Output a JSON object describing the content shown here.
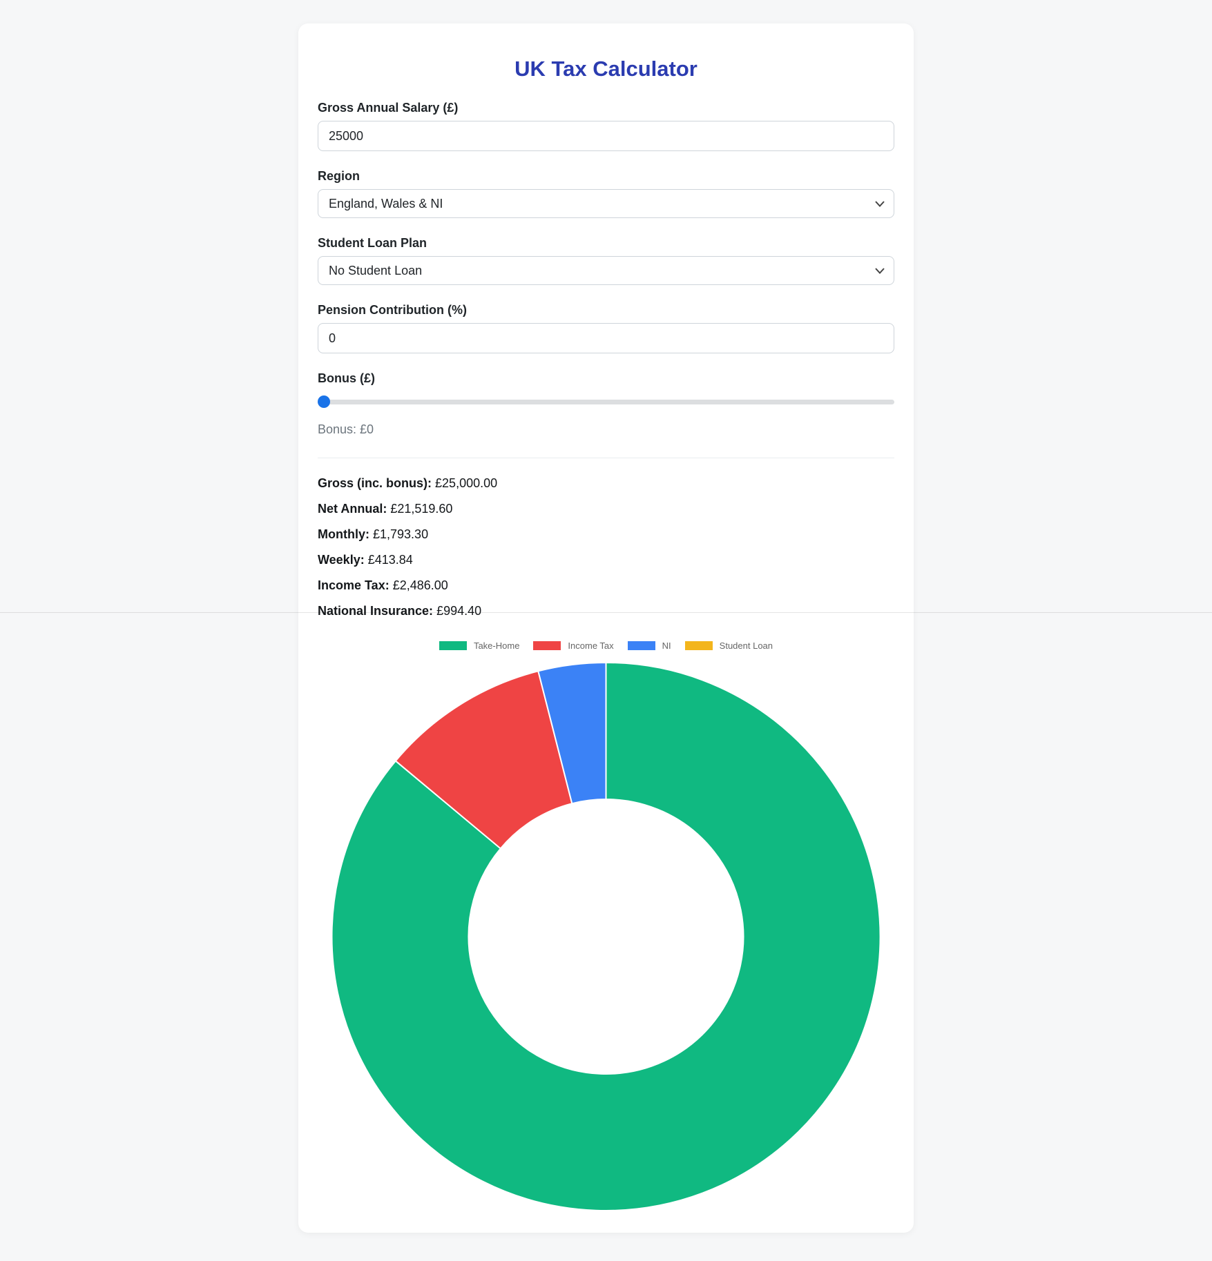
{
  "app": {
    "title": "UK Tax Calculator"
  },
  "theme": {
    "title_color": "#2b3cb0",
    "slider_thumb_color": "#1a73e8",
    "page_background": "#f6f7f8"
  },
  "form": {
    "salary": {
      "label": "Gross Annual Salary (£)",
      "value": "25000"
    },
    "region": {
      "label": "Region",
      "selected": "England, Wales & NI"
    },
    "student_loan": {
      "label": "Student Loan Plan",
      "selected": "No Student Loan"
    },
    "pension": {
      "label": "Pension Contribution (%)",
      "value": "0"
    },
    "bonus": {
      "label": "Bonus (£)",
      "value": "0",
      "display": "Bonus: £0"
    }
  },
  "results": [
    {
      "label": "Gross (inc. bonus):",
      "value": "£25,000.00"
    },
    {
      "label": "Net Annual:",
      "value": "£21,519.60"
    },
    {
      "label": "Monthly:",
      "value": "£1,793.30"
    },
    {
      "label": "Weekly:",
      "value": "£413.84"
    },
    {
      "label": "Income Tax:",
      "value": "£2,486.00"
    },
    {
      "label": "National Insurance:",
      "value": "£994.40"
    }
  ],
  "chart_data": {
    "type": "pie",
    "doughnut": true,
    "cutout": 0.5,
    "labels": [
      "Take-Home",
      "Income Tax",
      "NI",
      "Student Loan"
    ],
    "values": [
      21519.6,
      2486.0,
      994.4,
      0
    ],
    "colors": [
      "#10b981",
      "#ef4444",
      "#3b82f6",
      "#f3b51c"
    ],
    "border_color": "#ffffff",
    "legend_position": "top",
    "title": ""
  }
}
